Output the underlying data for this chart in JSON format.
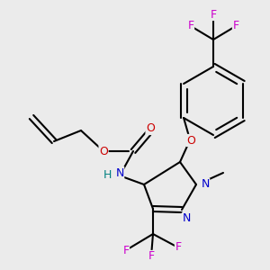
{
  "background_color": "#ebebeb",
  "atom_colors": {
    "C": "#000000",
    "N": "#0000cc",
    "O": "#cc0000",
    "F": "#cc00cc",
    "H": "#008080"
  },
  "bond_color": "#000000",
  "bond_width": 1.5,
  "fontsize": 9
}
